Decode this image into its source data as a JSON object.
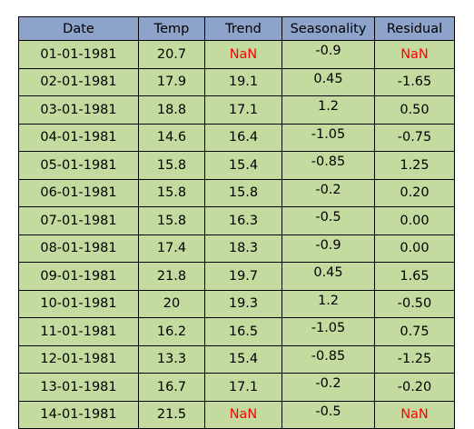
{
  "table": {
    "columns": [
      "Date",
      "Temp",
      "Trend",
      "Seasonality",
      "Residual"
    ],
    "rows": [
      [
        "01-01-1981",
        "20.7",
        "NaN",
        "-0.9",
        "NaN"
      ],
      [
        "02-01-1981",
        "17.9",
        "19.1",
        "0.45",
        "-1.65"
      ],
      [
        "03-01-1981",
        "18.8",
        "17.1",
        "1.2",
        "0.50"
      ],
      [
        "04-01-1981",
        "14.6",
        "16.4",
        "-1.05",
        "-0.75"
      ],
      [
        "05-01-1981",
        "15.8",
        "15.4",
        "-0.85",
        "1.25"
      ],
      [
        "06-01-1981",
        "15.8",
        "15.8",
        "-0.2",
        "0.20"
      ],
      [
        "07-01-1981",
        "15.8",
        "16.3",
        "-0.5",
        "0.00"
      ],
      [
        "08-01-1981",
        "17.4",
        "18.3",
        "-0.9",
        "0.00"
      ],
      [
        "09-01-1981",
        "21.8",
        "19.7",
        "0.45",
        "1.65"
      ],
      [
        "10-01-1981",
        "20",
        "19.3",
        "1.2",
        "-0.50"
      ],
      [
        "11-01-1981",
        "16.2",
        "16.5",
        "-1.05",
        "0.75"
      ],
      [
        "12-01-1981",
        "13.3",
        "15.4",
        "-0.85",
        "-1.25"
      ],
      [
        "13-01-1981",
        "16.7",
        "17.1",
        "-0.2",
        "-0.20"
      ],
      [
        "14-01-1981",
        "21.5",
        "NaN",
        "-0.5",
        "NaN"
      ]
    ]
  }
}
